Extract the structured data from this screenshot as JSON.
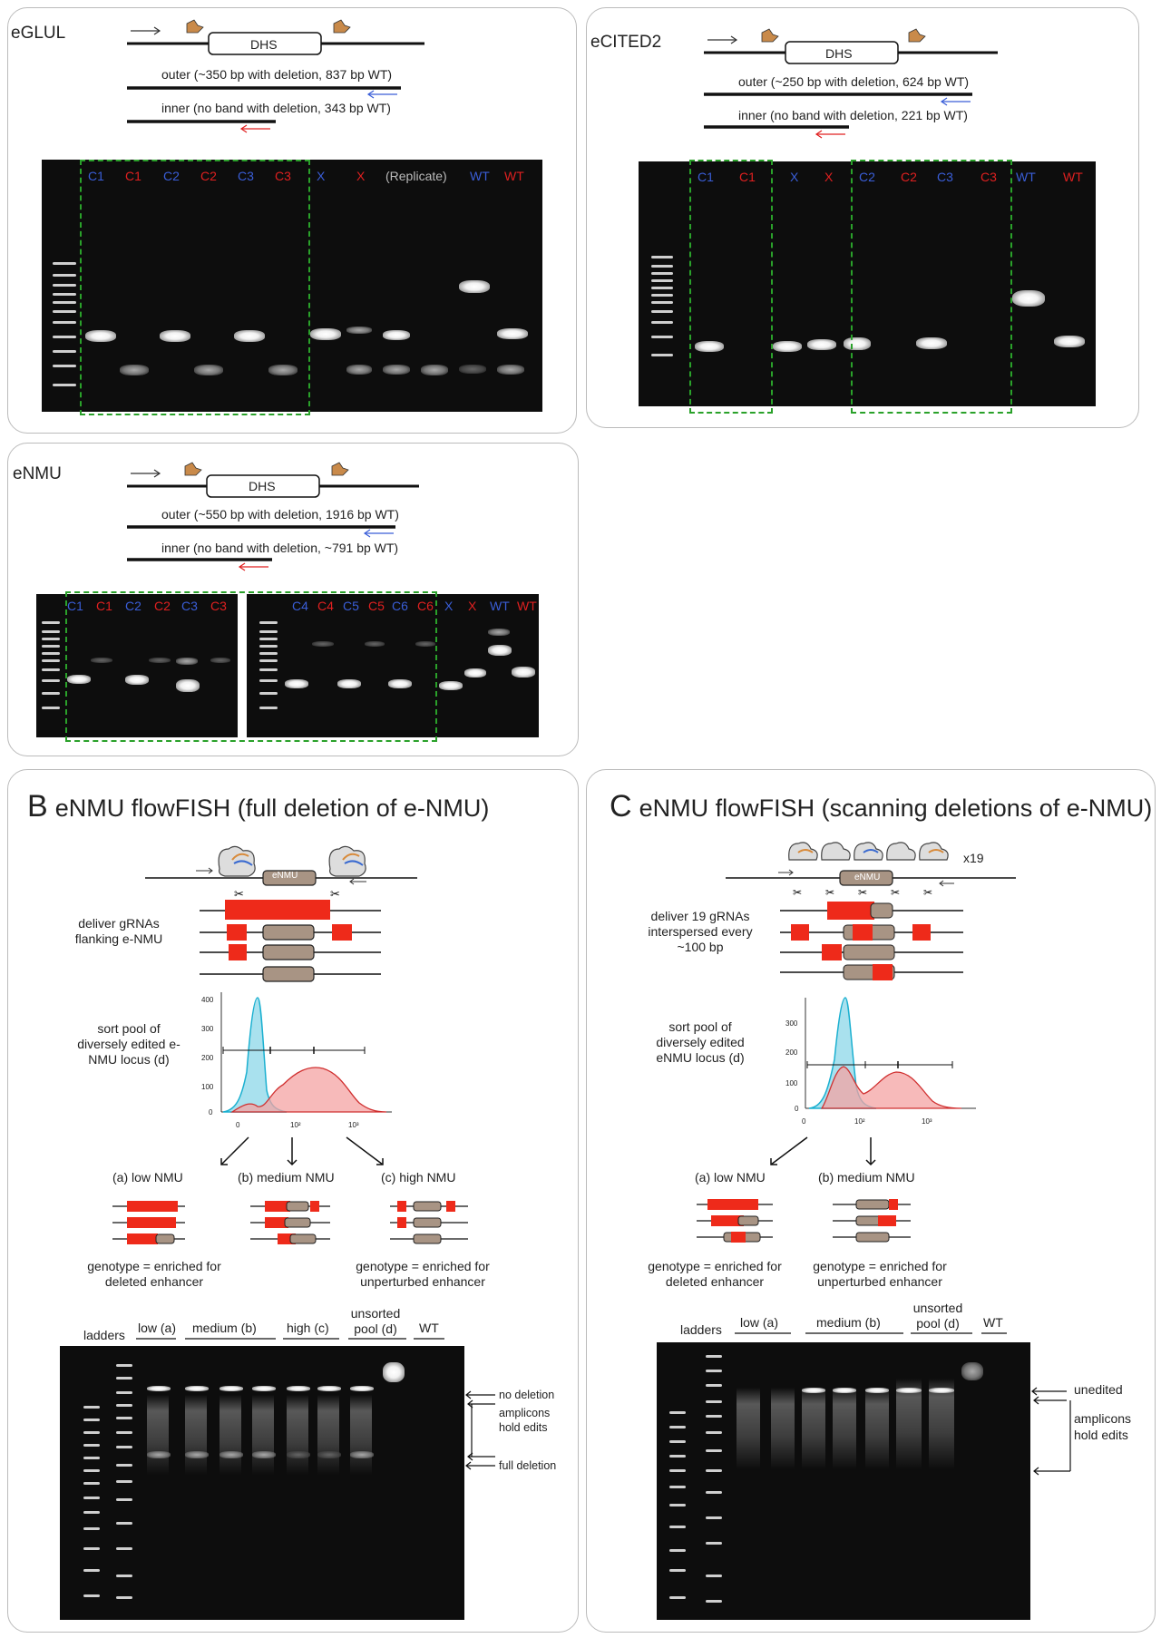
{
  "eglul": {
    "title": "eGLUL",
    "dhs": "DHS",
    "outer": "outer (~350 bp with deletion, 837 bp WT)",
    "inner": "inner (no band with deletion, 343 bp WT)",
    "lanes": [
      "C1",
      "C1",
      "C2",
      "C2",
      "C3",
      "C3",
      "X",
      "X",
      "(Replicate)",
      "WT",
      "WT"
    ]
  },
  "ecited2": {
    "title": "eCITED2",
    "dhs": "DHS",
    "outer": "outer (~250 bp with deletion, 624 bp WT)",
    "inner": "inner (no band with deletion, 221 bp WT)",
    "lanes": [
      "C1",
      "C1",
      "X",
      "X",
      "C2",
      "C2",
      "C3",
      "C3",
      "WT",
      "WT"
    ]
  },
  "enmu": {
    "title": "eNMU",
    "dhs": "DHS",
    "outer": "outer (~550 bp with deletion, 1916 bp WT)",
    "inner": "inner (no band with deletion, ~791 bp WT)",
    "lanes_left": [
      "C1",
      "C1",
      "C2",
      "C2",
      "C3",
      "C3"
    ],
    "lanes_right": [
      "C4",
      "C4",
      "C5",
      "C5",
      "C6",
      "C6",
      "X",
      "X",
      "WT",
      "WT"
    ]
  },
  "panel_b": {
    "letter": "B",
    "title": "eNMU flowFISH (full deletion of e-NMU)",
    "element": "eNMU",
    "deliver": "deliver gRNAs flanking e-NMU",
    "sort": "sort pool of diversely edited e-NMU locus (d)",
    "axis_y": [
      "400",
      "300",
      "200",
      "100",
      "0"
    ],
    "axis_x": [
      "0",
      "10²",
      "10³"
    ],
    "branch_a": "(a) low NMU",
    "branch_b": "(b) medium NMU",
    "branch_c": "(c) high NMU",
    "genotype_left": "genotype = enriched for deleted enhancer",
    "genotype_right": "genotype = enriched for unperturbed enhancer",
    "gel_ladders": "ladders",
    "gel_low": "low (a)",
    "gel_medium": "medium (b)",
    "gel_high": "high (c)",
    "gel_unsorted": "unsorted pool (d)",
    "gel_wt": "WT",
    "ann_nodel": "no deletion",
    "ann_hold": "amplicons hold edits",
    "ann_full": "full deletion"
  },
  "panel_c": {
    "letter": "C",
    "title": "eNMU flowFISH (scanning deletions of e-NMU)",
    "element": "eNMU",
    "x19": "x19",
    "deliver": "deliver 19 gRNAs interspersed every ~100 bp",
    "sort": "sort pool of diversely edited eNMU locus (d)",
    "axis_y": [
      "300",
      "200",
      "100",
      "0"
    ],
    "axis_x": [
      "0",
      "10²",
      "10³"
    ],
    "branch_a": "(a) low NMU",
    "branch_b": "(b) medium NMU",
    "genotype_left": "genotype = enriched for deleted enhancer",
    "genotype_right": "genotype = enriched for unperturbed enhancer",
    "gel_ladders": "ladders",
    "gel_low": "low (a)",
    "gel_medium": "medium (b)",
    "gel_unsorted": "unsorted pool (d)",
    "gel_wt": "WT",
    "ann_unedited": "unedited",
    "ann_hold": "amplicons hold edits"
  },
  "colors": {
    "outer": "#3a5ed8",
    "inner": "#e02020",
    "box": "#2aa12a",
    "deletion": "#ee2a1a",
    "enhancer": "#a89484"
  }
}
